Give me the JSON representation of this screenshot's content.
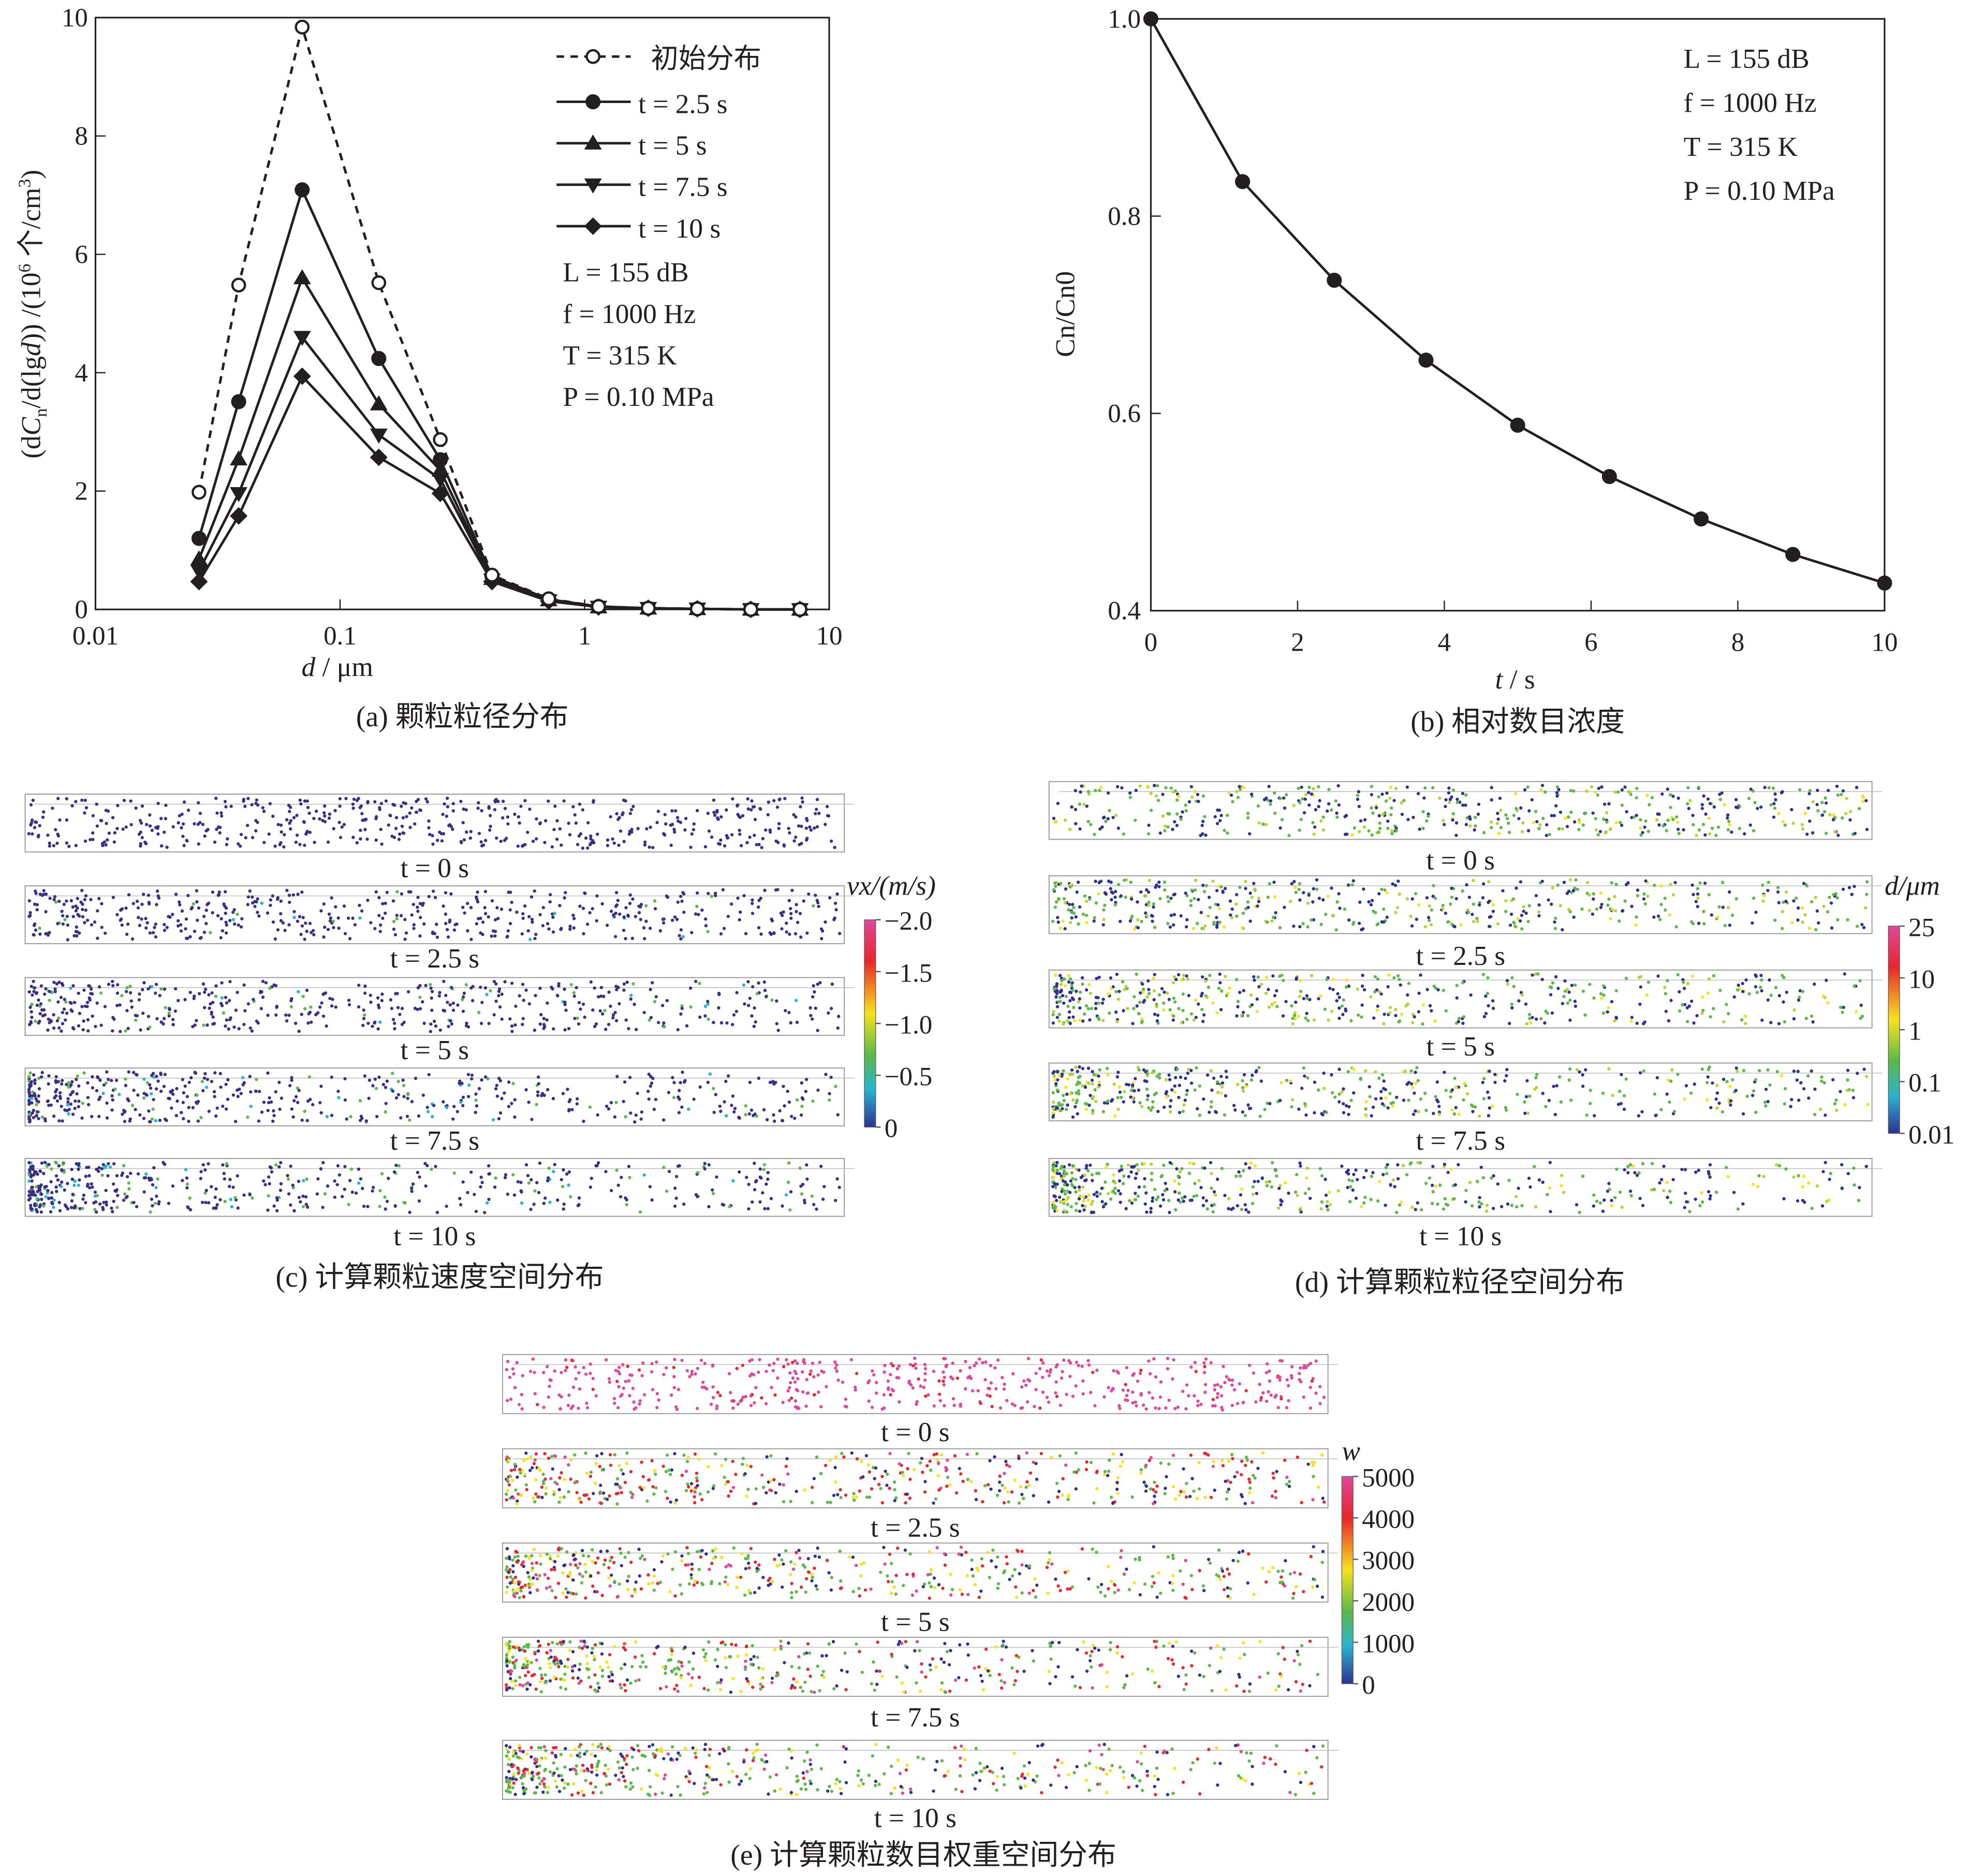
{
  "chart_data": [
    {
      "type": "line",
      "panel": "a",
      "caption": "(a) 颗粒粒径分布",
      "xlabel": "d / μm",
      "ylabel": "(dCn/d(lgd)) /(10^6 个/cm^3)",
      "xscale": "log",
      "xlim": [
        0.01,
        10
      ],
      "ylim": [
        0,
        10
      ],
      "xticks": [
        "0.01",
        "0.1",
        "1",
        "10"
      ],
      "yticks": [
        "0",
        "2",
        "4",
        "6",
        "8",
        "10"
      ],
      "legend_position": "top-right",
      "x": [
        0.0265,
        0.0385,
        0.07,
        0.144,
        0.257,
        0.418,
        0.713,
        1.14,
        1.82,
        2.89,
        4.78,
        7.59
      ],
      "series": [
        {
          "name": "初始分布",
          "marker": "open-circle",
          "dash": true,
          "values": [
            1.98,
            5.48,
            9.84,
            5.52,
            2.87,
            0.58,
            0.18,
            0.05,
            0.02,
            0.01,
            0,
            0
          ]
        },
        {
          "name": "t = 2.5 s",
          "marker": "circle",
          "values": [
            1.2,
            3.51,
            7.09,
            4.24,
            2.53,
            0.56,
            0.17,
            0.05,
            0.02,
            0.01,
            0,
            0
          ]
        },
        {
          "name": "t = 5 s",
          "marker": "triangle-up",
          "values": [
            0.85,
            2.54,
            5.6,
            3.47,
            2.35,
            0.52,
            0.16,
            0.04,
            0.02,
            0.01,
            0,
            0
          ]
        },
        {
          "name": "t = 7.5 s",
          "marker": "triangle-down",
          "values": [
            0.65,
            1.96,
            4.6,
            2.95,
            2.2,
            0.5,
            0.15,
            0.04,
            0.02,
            0.01,
            0,
            0
          ]
        },
        {
          "name": "t = 10 s",
          "marker": "diamond",
          "values": [
            0.47,
            1.58,
            3.94,
            2.57,
            1.96,
            0.47,
            0.14,
            0.04,
            0.02,
            0.01,
            0,
            0
          ]
        }
      ],
      "annotations": [
        "L = 155 dB",
        "f = 1000 Hz",
        "T = 315 K",
        "P = 0.10 MPa"
      ]
    },
    {
      "type": "line",
      "panel": "b",
      "caption": "(b) 相对数目浓度",
      "xlabel": "t / s",
      "ylabel": "Cn/Cn0",
      "xlim": [
        0,
        10
      ],
      "ylim": [
        0.4,
        1.0
      ],
      "xticks": [
        "0",
        "2",
        "4",
        "6",
        "8",
        "10"
      ],
      "yticks": [
        "0.4",
        "0.6",
        "0.8",
        "1.0"
      ],
      "x": [
        0,
        1.25,
        2.5,
        3.75,
        5,
        6.25,
        7.5,
        8.75,
        10
      ],
      "series": [
        {
          "marker": "circle",
          "values": [
            1.0,
            0.835,
            0.735,
            0.654,
            0.588,
            0.536,
            0.493,
            0.457,
            0.428
          ]
        }
      ],
      "annotations": [
        "L = 155 dB",
        "f = 1000 Hz",
        "T = 315 K",
        "P = 0.10 MPa"
      ]
    }
  ],
  "panels": {
    "c": {
      "caption": "(c) 计算颗粒速度空间分布",
      "times": [
        "t = 0 s",
        "t = 2.5 s",
        "t = 5 s",
        "t = 7.5 s",
        "t = 10 s"
      ],
      "colorbar_title": "vx/(m/s)",
      "colorbar_ticks": [
        "−2.0",
        "−1.5",
        "−1.0",
        "−0.5",
        "0"
      ]
    },
    "d": {
      "caption": "(d) 计算颗粒粒径空间分布",
      "times": [
        "t = 0 s",
        "t = 2.5 s",
        "t = 5 s",
        "t = 7.5 s",
        "t = 10 s"
      ],
      "colorbar_title": "d/μm",
      "colorbar_ticks": [
        "25",
        "10",
        "1",
        "0.1",
        "0.01"
      ]
    },
    "e": {
      "caption": "(e) 计算颗粒数目权重空间分布",
      "times": [
        "t = 0 s",
        "t = 2.5 s",
        "t = 5 s",
        "t = 7.5 s",
        "t = 10 s"
      ],
      "colorbar_title": "w",
      "colorbar_ticks": [
        "5000",
        "4000",
        "3000",
        "2000",
        "1000",
        "0"
      ]
    }
  },
  "colors": {
    "line": "#231f20",
    "colormap": [
      "#e0479b",
      "#e8262c",
      "#f7e21c",
      "#5cb947",
      "#27b4d0",
      "#2e3192"
    ]
  }
}
